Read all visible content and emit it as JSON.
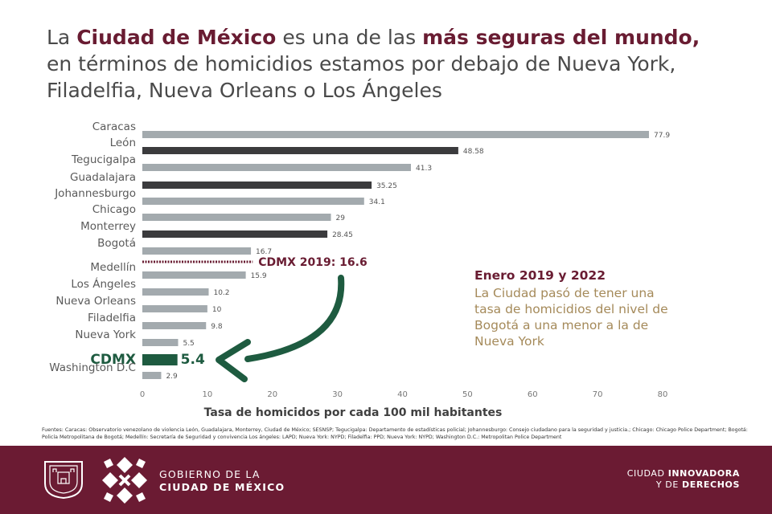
{
  "title": {
    "part1": "La ",
    "bold1": "Ciudad de México",
    "part2": " es una de las ",
    "bold2": "más seguras del mundo,",
    "line2": "en términos de homicidios estamos por debajo de Nueva York,",
    "line3": "Filadelfia, Nueva Orleans o Los Ángeles"
  },
  "chart_data": {
    "type": "bar",
    "orientation": "horizontal",
    "categories": [
      "Caracas",
      "León",
      "Tegucigalpa",
      "Guadalajara",
      "Johannesburgo",
      "Chicago",
      "Monterrey",
      "Bogotá",
      "Medellín",
      "Los Ángeles",
      "Nueva Orleans",
      "Filadelfia",
      "Nueva York",
      "CDMX",
      "Washington D.C"
    ],
    "values": [
      77.9,
      48.58,
      41.3,
      35.25,
      34.1,
      29,
      28.45,
      16.7,
      15.9,
      10.2,
      10,
      9.8,
      5.5,
      5.4,
      2.9
    ],
    "value_labels": [
      "77.9",
      "48.58",
      "41.3",
      "35.25",
      "34.1",
      "29",
      "28.45",
      "16.7",
      "15.9",
      "10.2",
      "10",
      "9.8",
      "5.5",
      "5.4",
      "2.9"
    ],
    "highlight_mexico": [
      "León",
      "Guadalajara",
      "Monterrey"
    ],
    "highlight_cdmx": "CDMX",
    "reference_line": {
      "label": "CDMX 2019: 16.6",
      "value": 16.6
    },
    "xlabel": "Tasa de homicidos por cada 100 mil habitantes",
    "xlim": [
      0,
      80
    ],
    "xticks": [
      0,
      10,
      20,
      30,
      40,
      50,
      60,
      70,
      80
    ],
    "colors": {
      "default": "#a3aaae",
      "mexico": "#3b3b3d",
      "cdmx": "#1e5b40",
      "reference": "#691c32"
    }
  },
  "annotation": {
    "title": "Enero 2019 y 2022",
    "body_lines": [
      "La Ciudad pasó de tener una",
      "tasa de homicidios del nivel de",
      "Bogotá a una menor a la de",
      "Nueva York"
    ]
  },
  "sources": "Fuentes: Caracas: Observatorio venezolano de violencia León, Guadalajara, Monterrey, Ciudad de México; SESNSP; Tegucigalpa: Departamento de estadísticas policial; Johannesburgo: Consejo ciudadano para la seguridad y justicia.; Chicago: Chicago Police Department; Bogotá: Policía Metropolitana de Bogotá; Medellín: Secretaría de Seguridad y convivencia Los ángeles: LAPD; Nueva York: NYPD; Filadelfia: PPD; Nueva York: NYPD; Washington D.C.: Metropolitan Police Department",
  "footer": {
    "gov_line1": "GOBIERNO DE LA",
    "gov_line2": "CIUDAD DE MÉXICO",
    "slogan_line1_regular": "CIUDAD ",
    "slogan_line1_bold": "INNOVADORA",
    "slogan_line2_regular": "Y DE ",
    "slogan_line2_bold": "DERECHOS",
    "background": "#6b1b33"
  }
}
